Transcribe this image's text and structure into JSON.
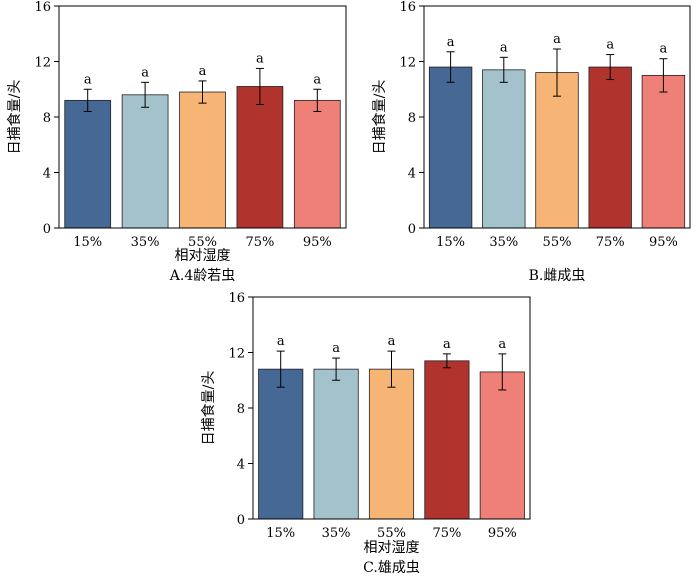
{
  "figure": {
    "categories": [
      "15%",
      "35%",
      "55%",
      "75%",
      "95%"
    ],
    "bar_colors": [
      "#456894",
      "#a3c2cc",
      "#f6b475",
      "#b0342d",
      "#ef8078"
    ]
  },
  "chart_data": [
    {
      "type": "bar",
      "title": "",
      "caption": "A.4龄若虫",
      "xlabel": "相对湿度",
      "ylabel": "日捕食量/头",
      "ylim": [
        0,
        16
      ],
      "yticks": [
        0,
        4,
        8,
        12,
        16
      ],
      "categories": [
        "15%",
        "35%",
        "55%",
        "75%",
        "95%"
      ],
      "values": [
        9.2,
        9.6,
        9.8,
        10.2,
        9.2
      ],
      "errors": [
        0.8,
        0.9,
        0.8,
        1.3,
        0.8
      ],
      "labels": [
        "a",
        "a",
        "a",
        "a",
        "a"
      ]
    },
    {
      "type": "bar",
      "title": "",
      "caption": "B.雌成虫",
      "xlabel": "",
      "ylabel": "日捕食量/头",
      "ylim": [
        0,
        16
      ],
      "yticks": [
        0,
        4,
        8,
        12,
        16
      ],
      "categories": [
        "15%",
        "35%",
        "55%",
        "75%",
        "95%"
      ],
      "values": [
        11.6,
        11.4,
        11.2,
        11.6,
        11.0
      ],
      "errors": [
        1.1,
        0.9,
        1.7,
        0.9,
        1.2
      ],
      "labels": [
        "a",
        "a",
        "a",
        "a",
        "a"
      ]
    },
    {
      "type": "bar",
      "title": "",
      "caption": "C.雄成虫",
      "xlabel": "相对湿度",
      "ylabel": "日捕食量/头",
      "ylim": [
        0,
        16
      ],
      "yticks": [
        0,
        4,
        8,
        12,
        16
      ],
      "categories": [
        "15%",
        "35%",
        "55%",
        "75%",
        "95%"
      ],
      "values": [
        10.8,
        10.8,
        10.8,
        11.4,
        10.6
      ],
      "errors": [
        1.3,
        0.8,
        1.3,
        0.5,
        1.3
      ],
      "labels": [
        "a",
        "a",
        "a",
        "a",
        "a"
      ]
    }
  ]
}
